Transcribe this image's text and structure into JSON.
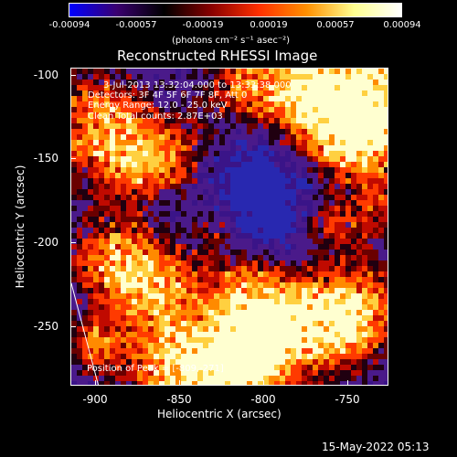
{
  "colorbar": {
    "ticks": [
      "-0.00094",
      "-0.00057",
      "-0.00019",
      "0.00019",
      "0.00057",
      "0.00094"
    ],
    "units": "(photons cm⁻² s⁻¹ asec⁻²)",
    "gradient_colors": [
      "#0000ff",
      "#3a0070",
      "#000000",
      "#8a0000",
      "#ff3000",
      "#ff9000",
      "#ffff90",
      "#ffffff"
    ]
  },
  "plot": {
    "title": "Reconstructed RHESSI Image",
    "info_time": "3-Jul-2013 13:32:04.000 to 13:33:38.000",
    "info_detectors": "Detectors: 3F 4F 5F 6F 7F 8F, Att 0",
    "info_energy": "Energy Range: 12.0 - 25.0 keV",
    "info_clean": "Clean     Total counts: 2.87E+03",
    "peak_text": "Position of Peak = [-809,-271]",
    "x_label": "Heliocentric X (arcsec)",
    "y_label": "Heliocentric Y (arcsec)",
    "x_ticks": [
      "-900",
      "-850",
      "-800",
      "-750"
    ],
    "y_ticks": [
      "-100",
      "-150",
      "-200",
      "-250"
    ]
  },
  "footer": {
    "date": "15-May-2022 05:13"
  }
}
